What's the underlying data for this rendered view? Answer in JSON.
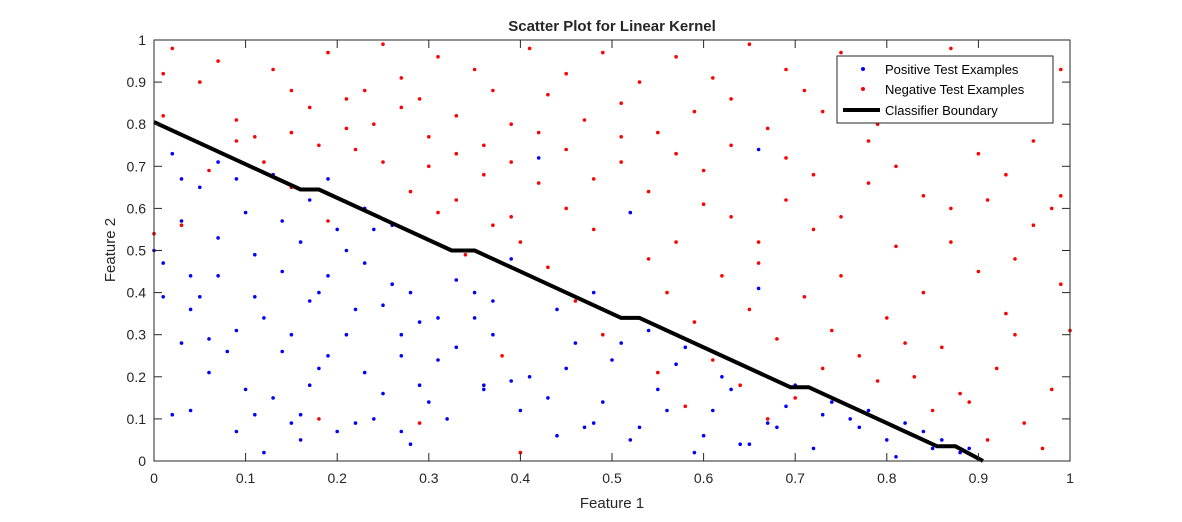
{
  "chart_data": {
    "type": "scatter",
    "title": "Scatter Plot for Linear Kernel",
    "xlabel": "Feature 1",
    "ylabel": "Feature 2",
    "xlim": [
      0,
      1
    ],
    "ylim": [
      0,
      1
    ],
    "xticks": [
      0,
      0.1,
      0.2,
      0.3,
      0.4,
      0.5,
      0.6,
      0.7,
      0.8,
      0.9,
      1
    ],
    "xtick_labels": [
      "0",
      "0.1",
      "0.2",
      "0.3",
      "0.4",
      "0.5",
      "0.6",
      "0.7",
      "0.8",
      "0.9",
      "1"
    ],
    "yticks": [
      0,
      0.1,
      0.2,
      0.3,
      0.4,
      0.5,
      0.6,
      0.7,
      0.8,
      0.9,
      1
    ],
    "ytick_labels": [
      "0",
      "0.1",
      "0.2",
      "0.3",
      "0.4",
      "0.5",
      "0.6",
      "0.7",
      "0.8",
      "0.9",
      "1"
    ],
    "grid": false,
    "legend_position": "top-right",
    "series": [
      {
        "name": "Positive Test Examples",
        "kind": "points",
        "color": "#0000ff",
        "points": [
          [
            0.01,
            0.47
          ],
          [
            0.02,
            0.73
          ],
          [
            0.03,
            0.67
          ],
          [
            0.04,
            0.44
          ],
          [
            0.05,
            0.65
          ],
          [
            0.07,
            0.71
          ],
          [
            0.09,
            0.67
          ],
          [
            0.1,
            0.59
          ],
          [
            0.13,
            0.68
          ],
          [
            0.03,
            0.28
          ],
          [
            0.05,
            0.39
          ],
          [
            0.07,
            0.44
          ],
          [
            0.09,
            0.31
          ],
          [
            0.11,
            0.39
          ],
          [
            0.02,
            0.11
          ],
          [
            0.04,
            0.12
          ],
          [
            0.06,
            0.21
          ],
          [
            0.08,
            0.26
          ],
          [
            0.1,
            0.17
          ],
          [
            0.12,
            0.34
          ],
          [
            0.14,
            0.45
          ],
          [
            0.16,
            0.52
          ],
          [
            0.18,
            0.4
          ],
          [
            0.2,
            0.55
          ],
          [
            0.22,
            0.36
          ],
          [
            0.24,
            0.55
          ],
          [
            0.26,
            0.42
          ],
          [
            0.28,
            0.4
          ],
          [
            0.15,
            0.09
          ],
          [
            0.17,
            0.18
          ],
          [
            0.19,
            0.25
          ],
          [
            0.21,
            0.3
          ],
          [
            0.23,
            0.21
          ],
          [
            0.25,
            0.16
          ],
          [
            0.27,
            0.25
          ],
          [
            0.29,
            0.33
          ],
          [
            0.31,
            0.24
          ],
          [
            0.12,
            0.02
          ],
          [
            0.16,
            0.05
          ],
          [
            0.2,
            0.07
          ],
          [
            0.24,
            0.1
          ],
          [
            0.28,
            0.04
          ],
          [
            0.32,
            0.1
          ],
          [
            0.36,
            0.17
          ],
          [
            0.4,
            0.12
          ],
          [
            0.44,
            0.06
          ],
          [
            0.48,
            0.09
          ],
          [
            0.52,
            0.05
          ],
          [
            0.56,
            0.12
          ],
          [
            0.6,
            0.06
          ],
          [
            0.64,
            0.04
          ],
          [
            0.68,
            0.08
          ],
          [
            0.72,
            0.03
          ],
          [
            0.76,
            0.1
          ],
          [
            0.8,
            0.05
          ],
          [
            0.84,
            0.07
          ],
          [
            0.88,
            0.02
          ],
          [
            0.33,
            0.27
          ],
          [
            0.35,
            0.34
          ],
          [
            0.37,
            0.3
          ],
          [
            0.39,
            0.19
          ],
          [
            0.41,
            0.2
          ],
          [
            0.43,
            0.15
          ],
          [
            0.45,
            0.22
          ],
          [
            0.47,
            0.08
          ],
          [
            0.49,
            0.14
          ],
          [
            0.51,
            0.28
          ],
          [
            0.53,
            0.08
          ],
          [
            0.55,
            0.17
          ],
          [
            0.57,
            0.23
          ],
          [
            0.59,
            0.02
          ],
          [
            0.61,
            0.12
          ],
          [
            0.63,
            0.17
          ],
          [
            0.65,
            0.04
          ],
          [
            0.67,
            0.09
          ],
          [
            0.69,
            0.13
          ],
          [
            0.73,
            0.11
          ],
          [
            0.77,
            0.08
          ],
          [
            0.81,
            0.01
          ],
          [
            0.85,
            0.03
          ],
          [
            0.13,
            0.15
          ],
          [
            0.15,
            0.3
          ],
          [
            0.17,
            0.38
          ],
          [
            0.19,
            0.44
          ],
          [
            0.21,
            0.5
          ],
          [
            0.23,
            0.47
          ],
          [
            0.25,
            0.37
          ],
          [
            0.27,
            0.3
          ],
          [
            0.29,
            0.18
          ],
          [
            0.31,
            0.34
          ],
          [
            0.33,
            0.43
          ],
          [
            0.35,
            0.4
          ],
          [
            0.37,
            0.38
          ],
          [
            0.39,
            0.48
          ],
          [
            0.42,
            0.72
          ],
          [
            0.52,
            0.59
          ],
          [
            0.66,
            0.41
          ],
          [
            0.66,
            0.74
          ],
          [
            0.48,
            0.4
          ],
          [
            0.36,
            0.18
          ],
          [
            0.3,
            0.14
          ],
          [
            0.27,
            0.07
          ],
          [
            0.22,
            0.09
          ],
          [
            0.18,
            0.22
          ],
          [
            0.14,
            0.26
          ],
          [
            0.11,
            0.11
          ],
          [
            0.09,
            0.07
          ],
          [
            0.06,
            0.29
          ],
          [
            0.04,
            0.36
          ],
          [
            0.01,
            0.39
          ],
          [
            0.0,
            0.5
          ],
          [
            0.03,
            0.57
          ],
          [
            0.07,
            0.53
          ],
          [
            0.11,
            0.49
          ],
          [
            0.14,
            0.57
          ],
          [
            0.17,
            0.62
          ],
          [
            0.19,
            0.67
          ],
          [
            0.23,
            0.6
          ],
          [
            0.26,
            0.56
          ],
          [
            0.16,
            0.11
          ],
          [
            0.44,
            0.36
          ],
          [
            0.46,
            0.28
          ],
          [
            0.5,
            0.24
          ],
          [
            0.54,
            0.31
          ],
          [
            0.58,
            0.27
          ],
          [
            0.62,
            0.2
          ],
          [
            0.7,
            0.18
          ],
          [
            0.74,
            0.14
          ],
          [
            0.78,
            0.12
          ],
          [
            0.82,
            0.09
          ],
          [
            0.86,
            0.05
          ],
          [
            0.89,
            0.03
          ]
        ]
      },
      {
        "name": "Negative Test Examples",
        "kind": "points",
        "color": "#ff0000",
        "points": [
          [
            0.01,
            0.82
          ],
          [
            0.02,
            0.98
          ],
          [
            0.05,
            0.9
          ],
          [
            0.07,
            0.95
          ],
          [
            0.09,
            0.81
          ],
          [
            0.11,
            0.77
          ],
          [
            0.13,
            0.93
          ],
          [
            0.15,
            0.88
          ],
          [
            0.17,
            0.84
          ],
          [
            0.19,
            0.97
          ],
          [
            0.21,
            0.79
          ],
          [
            0.23,
            0.88
          ],
          [
            0.25,
            0.99
          ],
          [
            0.27,
            0.91
          ],
          [
            0.29,
            0.86
          ],
          [
            0.31,
            0.96
          ],
          [
            0.33,
            0.82
          ],
          [
            0.35,
            0.93
          ],
          [
            0.37,
            0.88
          ],
          [
            0.39,
            0.8
          ],
          [
            0.41,
            0.98
          ],
          [
            0.43,
            0.87
          ],
          [
            0.45,
            0.92
          ],
          [
            0.47,
            0.81
          ],
          [
            0.49,
            0.97
          ],
          [
            0.51,
            0.85
          ],
          [
            0.53,
            0.9
          ],
          [
            0.55,
            0.78
          ],
          [
            0.57,
            0.96
          ],
          [
            0.59,
            0.83
          ],
          [
            0.61,
            0.91
          ],
          [
            0.63,
            0.86
          ],
          [
            0.65,
            0.99
          ],
          [
            0.67,
            0.79
          ],
          [
            0.69,
            0.93
          ],
          [
            0.71,
            0.88
          ],
          [
            0.73,
            0.83
          ],
          [
            0.75,
            0.97
          ],
          [
            0.77,
            0.9
          ],
          [
            0.79,
            0.8
          ],
          [
            0.81,
            0.95
          ],
          [
            0.83,
            0.87
          ],
          [
            0.85,
            0.82
          ],
          [
            0.87,
            0.98
          ],
          [
            0.89,
            0.89
          ],
          [
            0.91,
            0.84
          ],
          [
            0.93,
            0.92
          ],
          [
            0.95,
            0.86
          ],
          [
            0.97,
            0.81
          ],
          [
            0.99,
            0.93
          ],
          [
            0.3,
            0.7
          ],
          [
            0.33,
            0.62
          ],
          [
            0.36,
            0.68
          ],
          [
            0.39,
            0.58
          ],
          [
            0.42,
            0.66
          ],
          [
            0.45,
            0.6
          ],
          [
            0.48,
            0.55
          ],
          [
            0.51,
            0.71
          ],
          [
            0.54,
            0.64
          ],
          [
            0.57,
            0.52
          ],
          [
            0.6,
            0.69
          ],
          [
            0.63,
            0.58
          ],
          [
            0.66,
            0.47
          ],
          [
            0.69,
            0.62
          ],
          [
            0.72,
            0.55
          ],
          [
            0.75,
            0.44
          ],
          [
            0.78,
            0.66
          ],
          [
            0.81,
            0.51
          ],
          [
            0.84,
            0.4
          ],
          [
            0.87,
            0.6
          ],
          [
            0.9,
            0.45
          ],
          [
            0.93,
            0.35
          ],
          [
            0.96,
            0.56
          ],
          [
            0.99,
            0.42
          ],
          [
            0.56,
            0.4
          ],
          [
            0.59,
            0.33
          ],
          [
            0.62,
            0.44
          ],
          [
            0.65,
            0.36
          ],
          [
            0.68,
            0.29
          ],
          [
            0.71,
            0.39
          ],
          [
            0.74,
            0.31
          ],
          [
            0.77,
            0.25
          ],
          [
            0.8,
            0.34
          ],
          [
            0.83,
            0.2
          ],
          [
            0.86,
            0.27
          ],
          [
            0.89,
            0.14
          ],
          [
            0.92,
            0.22
          ],
          [
            0.95,
            0.09
          ],
          [
            0.98,
            0.17
          ],
          [
            0.97,
            0.03
          ],
          [
            0.94,
            0.3
          ],
          [
            0.91,
            0.05
          ],
          [
            0.88,
            0.16
          ],
          [
            0.85,
            0.12
          ],
          [
            0.82,
            0.28
          ],
          [
            0.79,
            0.19
          ],
          [
            0.76,
            0.13
          ],
          [
            0.73,
            0.22
          ],
          [
            0.7,
            0.15
          ],
          [
            0.67,
            0.1
          ],
          [
            0.64,
            0.18
          ],
          [
            0.61,
            0.24
          ],
          [
            0.58,
            0.13
          ],
          [
            0.55,
            0.21
          ],
          [
            0.52,
            0.34
          ],
          [
            0.49,
            0.3
          ],
          [
            0.46,
            0.38
          ],
          [
            0.43,
            0.46
          ],
          [
            0.4,
            0.52
          ],
          [
            0.37,
            0.56
          ],
          [
            0.34,
            0.49
          ],
          [
            0.31,
            0.59
          ],
          [
            0.28,
            0.64
          ],
          [
            0.25,
            0.71
          ],
          [
            0.22,
            0.74
          ],
          [
            0.19,
            0.57
          ],
          [
            0.15,
            0.65
          ],
          [
            0.12,
            0.71
          ],
          [
            0.09,
            0.76
          ],
          [
            0.06,
            0.69
          ],
          [
            0.03,
            0.56
          ],
          [
            0.01,
            0.92
          ],
          [
            0.0,
            0.54
          ],
          [
            0.98,
            0.6
          ],
          [
            0.96,
            0.76
          ],
          [
            0.93,
            0.68
          ],
          [
            0.9,
            0.73
          ],
          [
            0.87,
            0.52
          ],
          [
            0.84,
            0.63
          ],
          [
            0.81,
            0.7
          ],
          [
            0.78,
            0.76
          ],
          [
            0.75,
            0.58
          ],
          [
            0.72,
            0.68
          ],
          [
            0.69,
            0.72
          ],
          [
            0.66,
            0.52
          ],
          [
            0.63,
            0.75
          ],
          [
            0.6,
            0.61
          ],
          [
            0.57,
            0.73
          ],
          [
            0.54,
            0.48
          ],
          [
            0.51,
            0.77
          ],
          [
            0.48,
            0.67
          ],
          [
            0.45,
            0.74
          ],
          [
            0.42,
            0.78
          ],
          [
            0.39,
            0.71
          ],
          [
            0.36,
            0.75
          ],
          [
            0.33,
            0.73
          ],
          [
            0.3,
            0.77
          ],
          [
            0.27,
            0.84
          ],
          [
            0.24,
            0.8
          ],
          [
            0.21,
            0.86
          ],
          [
            0.18,
            0.75
          ],
          [
            0.15,
            0.78
          ],
          [
            0.18,
            0.1
          ],
          [
            0.29,
            0.09
          ],
          [
            0.38,
            0.25
          ],
          [
            0.4,
            0.02
          ],
          [
            0.99,
            0.63
          ],
          [
            1.0,
            0.31
          ],
          [
            0.94,
            0.48
          ],
          [
            0.91,
            0.62
          ]
        ]
      },
      {
        "name": "Classifier Boundary",
        "kind": "line",
        "color": "#000000",
        "points": [
          [
            0,
            0.805
          ],
          [
            0.16,
            0.645
          ],
          [
            0.18,
            0.645
          ],
          [
            0.325,
            0.5
          ],
          [
            0.35,
            0.5
          ],
          [
            0.51,
            0.34
          ],
          [
            0.53,
            0.34
          ],
          [
            0.695,
            0.175
          ],
          [
            0.715,
            0.175
          ],
          [
            0.855,
            0.035
          ],
          [
            0.875,
            0.035
          ],
          [
            0.905,
            0.0
          ]
        ]
      }
    ]
  }
}
